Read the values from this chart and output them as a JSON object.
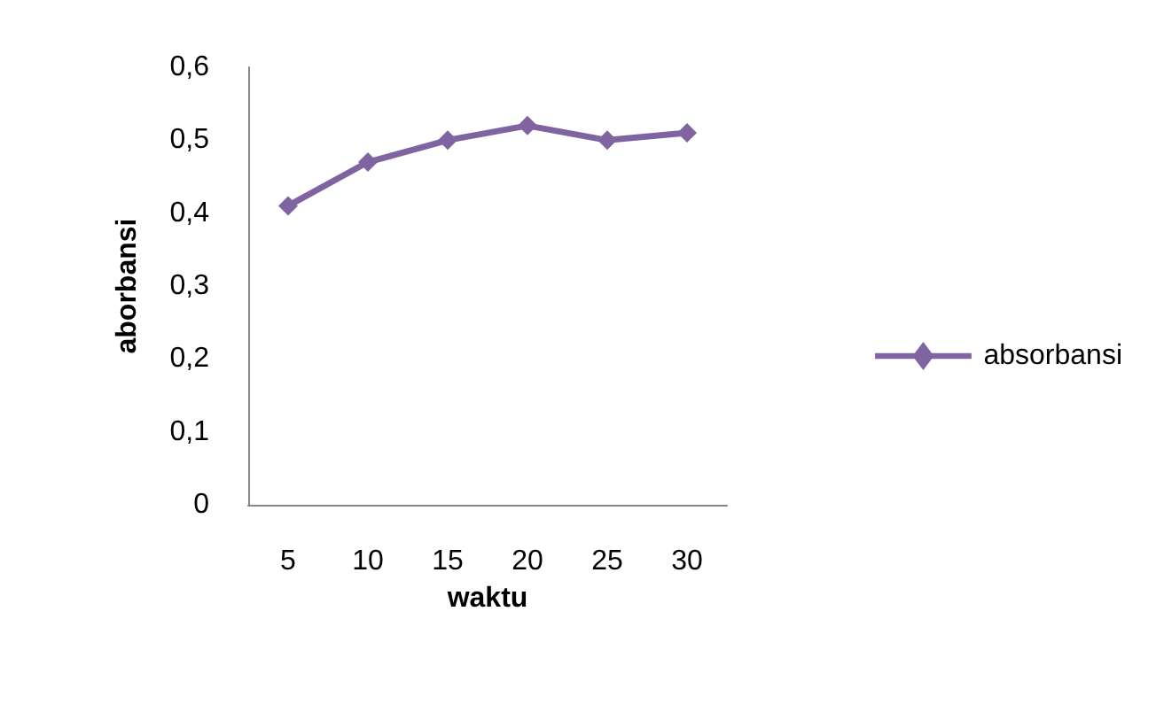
{
  "chart_data": {
    "type": "line",
    "xlabel": "waktu",
    "ylabel": "aborbansi",
    "categories": [
      "5",
      "10",
      "15",
      "20",
      "25",
      "30"
    ],
    "series": [
      {
        "name": "absorbansi",
        "color": "#8064a2",
        "values": [
          0.41,
          0.47,
          0.5,
          0.52,
          0.5,
          0.51
        ]
      }
    ],
    "ylim": [
      0,
      0.6
    ],
    "yticks": [
      {
        "value": 0,
        "label": "0"
      },
      {
        "value": 0.1,
        "label": "0,1"
      },
      {
        "value": 0.2,
        "label": "0,2"
      },
      {
        "value": 0.3,
        "label": "0,3"
      },
      {
        "value": 0.4,
        "label": "0,4"
      },
      {
        "value": 0.5,
        "label": "0,5"
      },
      {
        "value": 0.6,
        "label": "0,6"
      }
    ],
    "grid": false,
    "legend": "right",
    "marker": "diamond",
    "line_style": "solid"
  }
}
